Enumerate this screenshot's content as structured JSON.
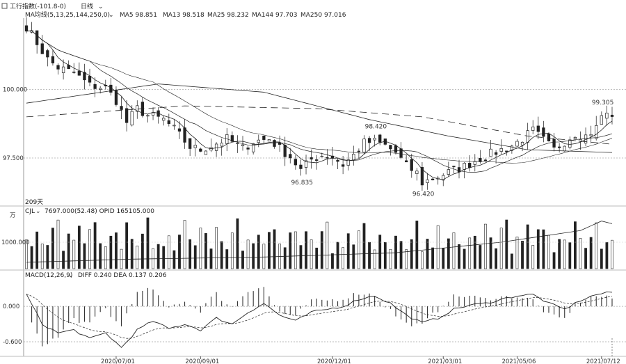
{
  "header": {
    "symbol_text": "工行指数(-101.8-0)",
    "period_text": "日线"
  },
  "panels": {
    "main": {
      "indicator_text": "MA均线(5,13,25,144,250,0)",
      "legend": [
        {
          "label": "MA5 98.851"
        },
        {
          "label": "MA13 98.518"
        },
        {
          "label": "MA25 98.232"
        },
        {
          "label": "MA144 97.703"
        },
        {
          "label": "MA250 97.016"
        }
      ]
    },
    "volume": {
      "days_text": "209天",
      "indicator_text": "CJL",
      "values_text": "7697.000(52.48)  OPID 165105.000",
      "unit_label": "万",
      "tick_label": "1000.000"
    },
    "macd": {
      "indicator_text": "MACD(12,26,9)",
      "values_text": "DIFF 0.240  DEA 0.137  0.206"
    }
  },
  "chart_data": [
    {
      "type": "candlestick",
      "title": "",
      "y_ticks": [
        "100.000",
        "97.500"
      ],
      "ylim": [
        95.9,
        102.5
      ],
      "x_ticks": [
        "2020/07/01",
        "2020/09/01",
        "2020/12/01",
        "2021/03/01",
        "2021/05/06",
        "2021/07/12"
      ],
      "x_tick_index": [
        17,
        33,
        58,
        79,
        93,
        109
      ],
      "bars": 112,
      "annotations": [
        {
          "text": "98.420",
          "x_index": 66,
          "y": 98.42
        },
        {
          "text": "96.835",
          "x_index": 52,
          "y": 96.835
        },
        {
          "text": "96.420",
          "x_index": 75,
          "y": 96.42
        },
        {
          "text": "99.305",
          "x_index": 109,
          "y": 99.305
        }
      ],
      "close_anchors": [
        [
          0,
          102.3
        ],
        [
          2,
          101.7
        ],
        [
          4,
          101.1
        ],
        [
          6,
          100.8
        ],
        [
          9,
          100.6
        ],
        [
          12,
          100.15
        ],
        [
          15,
          100.05
        ],
        [
          17,
          99.6
        ],
        [
          19,
          98.8
        ],
        [
          21,
          99.3
        ],
        [
          23,
          99.05
        ],
        [
          26,
          98.9
        ],
        [
          28,
          98.55
        ],
        [
          31,
          97.9
        ],
        [
          33,
          97.8
        ],
        [
          35,
          97.95
        ],
        [
          38,
          98.2
        ],
        [
          41,
          97.85
        ],
        [
          43,
          98.1
        ],
        [
          46,
          98.2
        ],
        [
          48,
          97.85
        ],
        [
          50,
          97.55
        ],
        [
          52,
          97.05
        ],
        [
          54,
          97.45
        ],
        [
          56,
          97.6
        ],
        [
          58,
          97.55
        ],
        [
          60,
          97.25
        ],
        [
          62,
          97.6
        ],
        [
          64,
          98.05
        ],
        [
          66,
          98.1
        ],
        [
          68,
          97.95
        ],
        [
          70,
          97.7
        ],
        [
          72,
          97.2
        ],
        [
          74,
          96.95
        ],
        [
          75,
          96.6
        ],
        [
          77,
          96.75
        ],
        [
          79,
          96.9
        ],
        [
          81,
          97.05
        ],
        [
          83,
          97.2
        ],
        [
          85,
          97.4
        ],
        [
          88,
          97.65
        ],
        [
          90,
          97.8
        ],
        [
          92,
          97.95
        ],
        [
          94,
          98.2
        ],
        [
          96,
          98.5
        ],
        [
          98,
          98.15
        ],
        [
          100,
          97.8
        ],
        [
          102,
          98.1
        ],
        [
          104,
          98.4
        ],
        [
          106,
          98.3
        ],
        [
          108,
          98.6
        ],
        [
          109,
          99.05
        ],
        [
          111,
          99.1
        ]
      ],
      "series": [
        {
          "name": "MA5"
        },
        {
          "name": "MA13"
        },
        {
          "name": "MA25"
        },
        {
          "name": "MA144"
        },
        {
          "name": "MA250"
        }
      ],
      "grid": true
    },
    {
      "type": "bar",
      "title": "",
      "y_ticks": [
        "1000.000"
      ],
      "pattern": [
        0.62,
        0.45,
        0.8,
        0.55,
        0.4,
        0.7,
        0.9,
        0.35,
        0.6,
        0.5,
        0.75,
        0.45,
        0.65,
        0.85,
        0.55,
        0.4,
        0.7
      ],
      "line_anchors": [
        [
          0,
          0.12
        ],
        [
          20,
          0.18
        ],
        [
          45,
          0.22
        ],
        [
          70,
          0.3
        ],
        [
          90,
          0.5
        ],
        [
          105,
          0.72
        ],
        [
          109,
          0.9
        ],
        [
          111,
          0.85
        ]
      ]
    },
    {
      "type": "bar",
      "title": "",
      "y_ticks": [
        "0.000",
        "-0.600"
      ],
      "ylim": [
        -0.8,
        0.45
      ],
      "diff_anchors": [
        [
          0,
          0.2
        ],
        [
          3,
          -0.3
        ],
        [
          6,
          -0.45
        ],
        [
          9,
          -0.4
        ],
        [
          12,
          -0.55
        ],
        [
          15,
          -0.45
        ],
        [
          18,
          -0.7
        ],
        [
          21,
          -0.4
        ],
        [
          24,
          -0.25
        ],
        [
          27,
          -0.38
        ],
        [
          30,
          -0.3
        ],
        [
          33,
          -0.4
        ],
        [
          36,
          -0.2
        ],
        [
          39,
          -0.3
        ],
        [
          42,
          -0.1
        ],
        [
          45,
          0.05
        ],
        [
          48,
          -0.15
        ],
        [
          51,
          -0.25
        ],
        [
          54,
          -0.1
        ],
        [
          57,
          -0.05
        ],
        [
          60,
          0.0
        ],
        [
          63,
          0.12
        ],
        [
          66,
          0.18
        ],
        [
          69,
          0.05
        ],
        [
          72,
          -0.15
        ],
        [
          75,
          -0.28
        ],
        [
          78,
          -0.2
        ],
        [
          81,
          -0.05
        ],
        [
          84,
          0.02
        ],
        [
          87,
          0.05
        ],
        [
          90,
          0.12
        ],
        [
          93,
          0.18
        ],
        [
          96,
          0.2
        ],
        [
          99,
          0.05
        ],
        [
          102,
          -0.05
        ],
        [
          105,
          0.1
        ],
        [
          108,
          0.2
        ],
        [
          111,
          0.24
        ]
      ]
    }
  ]
}
